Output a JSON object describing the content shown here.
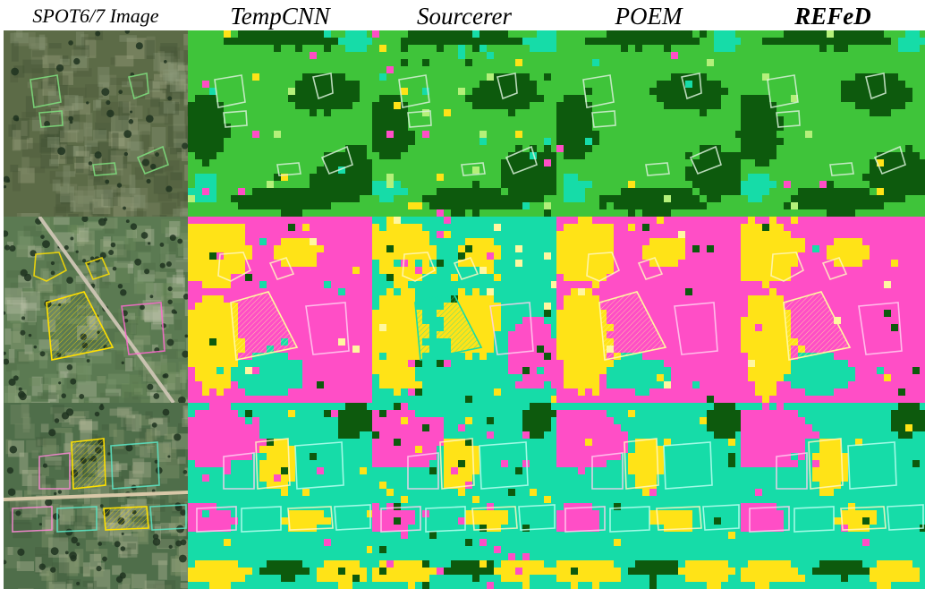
{
  "columns": [
    {
      "key": "spot",
      "title": "SPOT6/7 Image",
      "emphasis": "normal"
    },
    {
      "key": "tempcnn",
      "title": "TempCNN",
      "emphasis": "normal"
    },
    {
      "key": "sourcerer",
      "title": "Sourcerer",
      "emphasis": "normal"
    },
    {
      "key": "poem",
      "title": "POEM",
      "emphasis": "normal"
    },
    {
      "key": "refed",
      "title": "REFeD",
      "emphasis": "bold"
    }
  ],
  "rows": [
    {
      "key": "forest-scene",
      "dominant_class_color": "#3fbf3f",
      "parcel_outline_color": "#d8f0d8"
    },
    {
      "key": "orchard-scene",
      "dominant_class_color": "#ff4fc4",
      "parcel_outline_color": "#ffe25a"
    },
    {
      "key": "field-scene",
      "dominant_class_color": "#18d9a8",
      "parcel_outline_color": "#ffe25a"
    }
  ],
  "palette": {
    "light_green": "#3fc43a",
    "dark_green": "#0d5a0d",
    "cyan": "#16dca8",
    "magenta": "#ff4ec6",
    "yellow": "#ffe317",
    "pale_yellow": "#fff7a0",
    "pale_green": "#b4f07a"
  }
}
